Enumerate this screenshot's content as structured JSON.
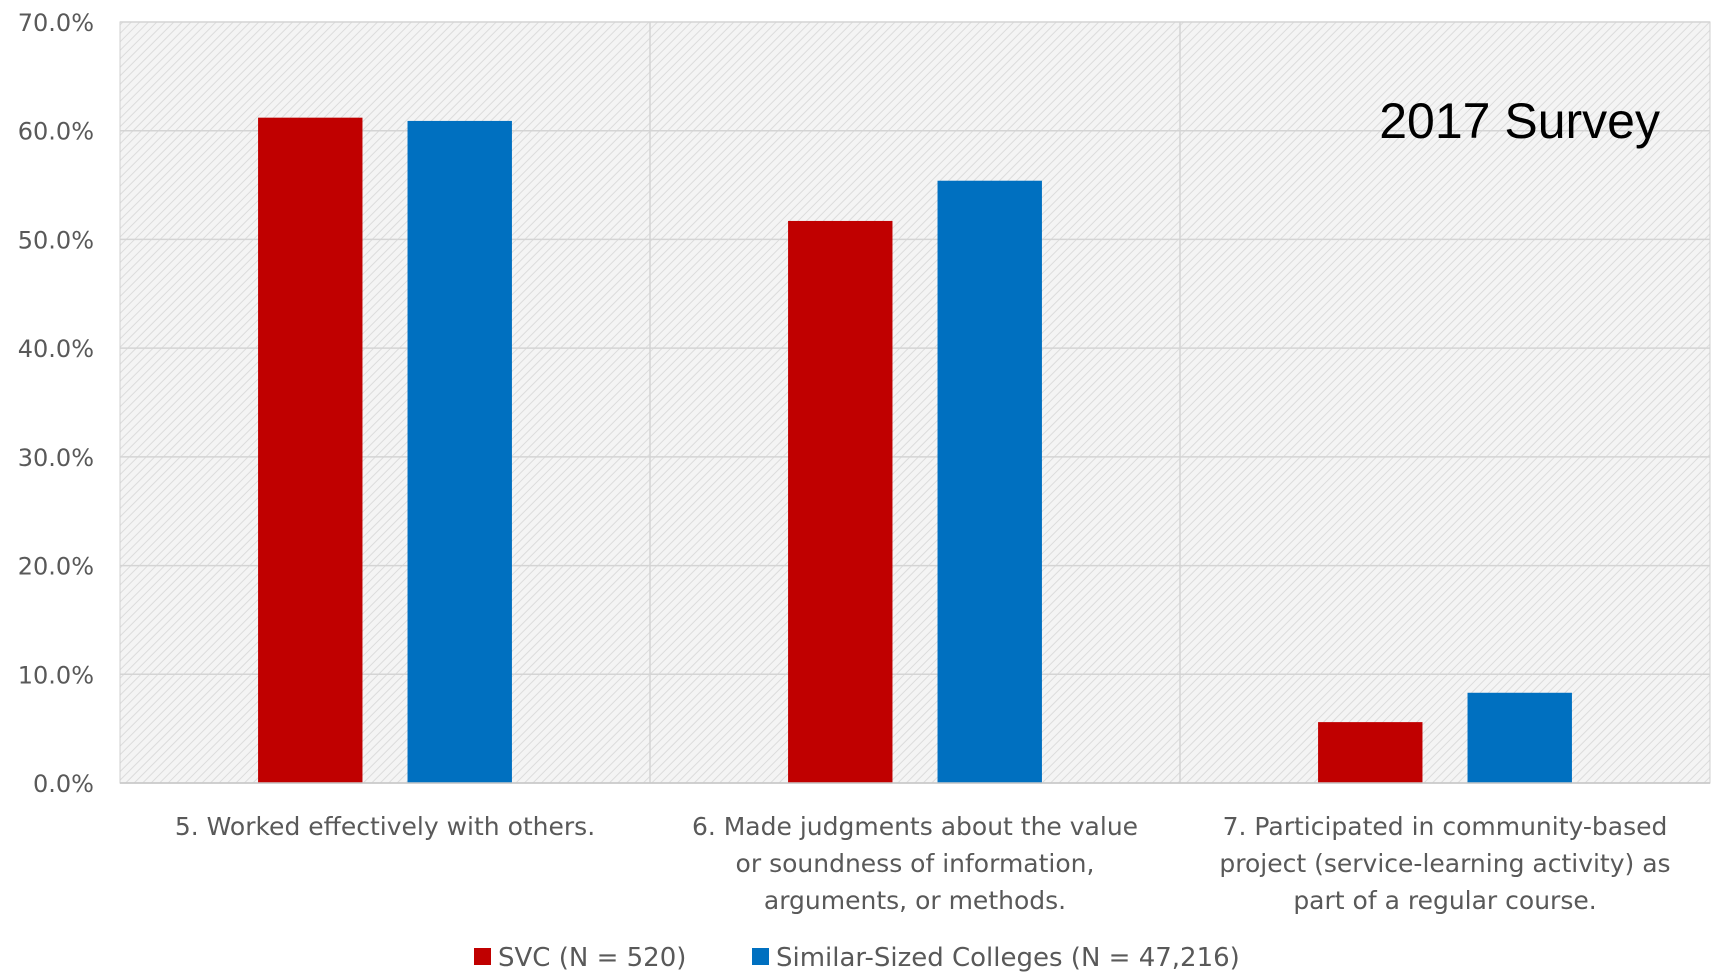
{
  "chart_data": {
    "type": "bar",
    "title": "",
    "xlabel": "",
    "ylabel": "",
    "annotation": "2017 Survey",
    "ylim": [
      0,
      70
    ],
    "yticks": [
      0,
      10,
      20,
      30,
      40,
      50,
      60,
      70
    ],
    "ytick_labels": [
      "0.0%",
      "10.0%",
      "20.0%",
      "30.0%",
      "40.0%",
      "50.0%",
      "60.0%",
      "70.0%"
    ],
    "categories": [
      [
        "5. Worked effectively with others."
      ],
      [
        "6. Made judgments about the value",
        "or soundness of information,",
        "arguments, or methods."
      ],
      [
        "7. Participated in community-based",
        "project (service-learning activity) as",
        "part of a regular course."
      ]
    ],
    "series": [
      {
        "name": "SVC (N = 520)",
        "color": "#c00000",
        "values": [
          61.2,
          51.7,
          5.6
        ]
      },
      {
        "name": "Similar-Sized Colleges (N = 47,216)",
        "color": "#0070c0",
        "values": [
          60.9,
          55.4,
          8.3
        ]
      }
    ],
    "grid": true,
    "plot_background": "hatched light gray",
    "legend_position": "bottom"
  }
}
